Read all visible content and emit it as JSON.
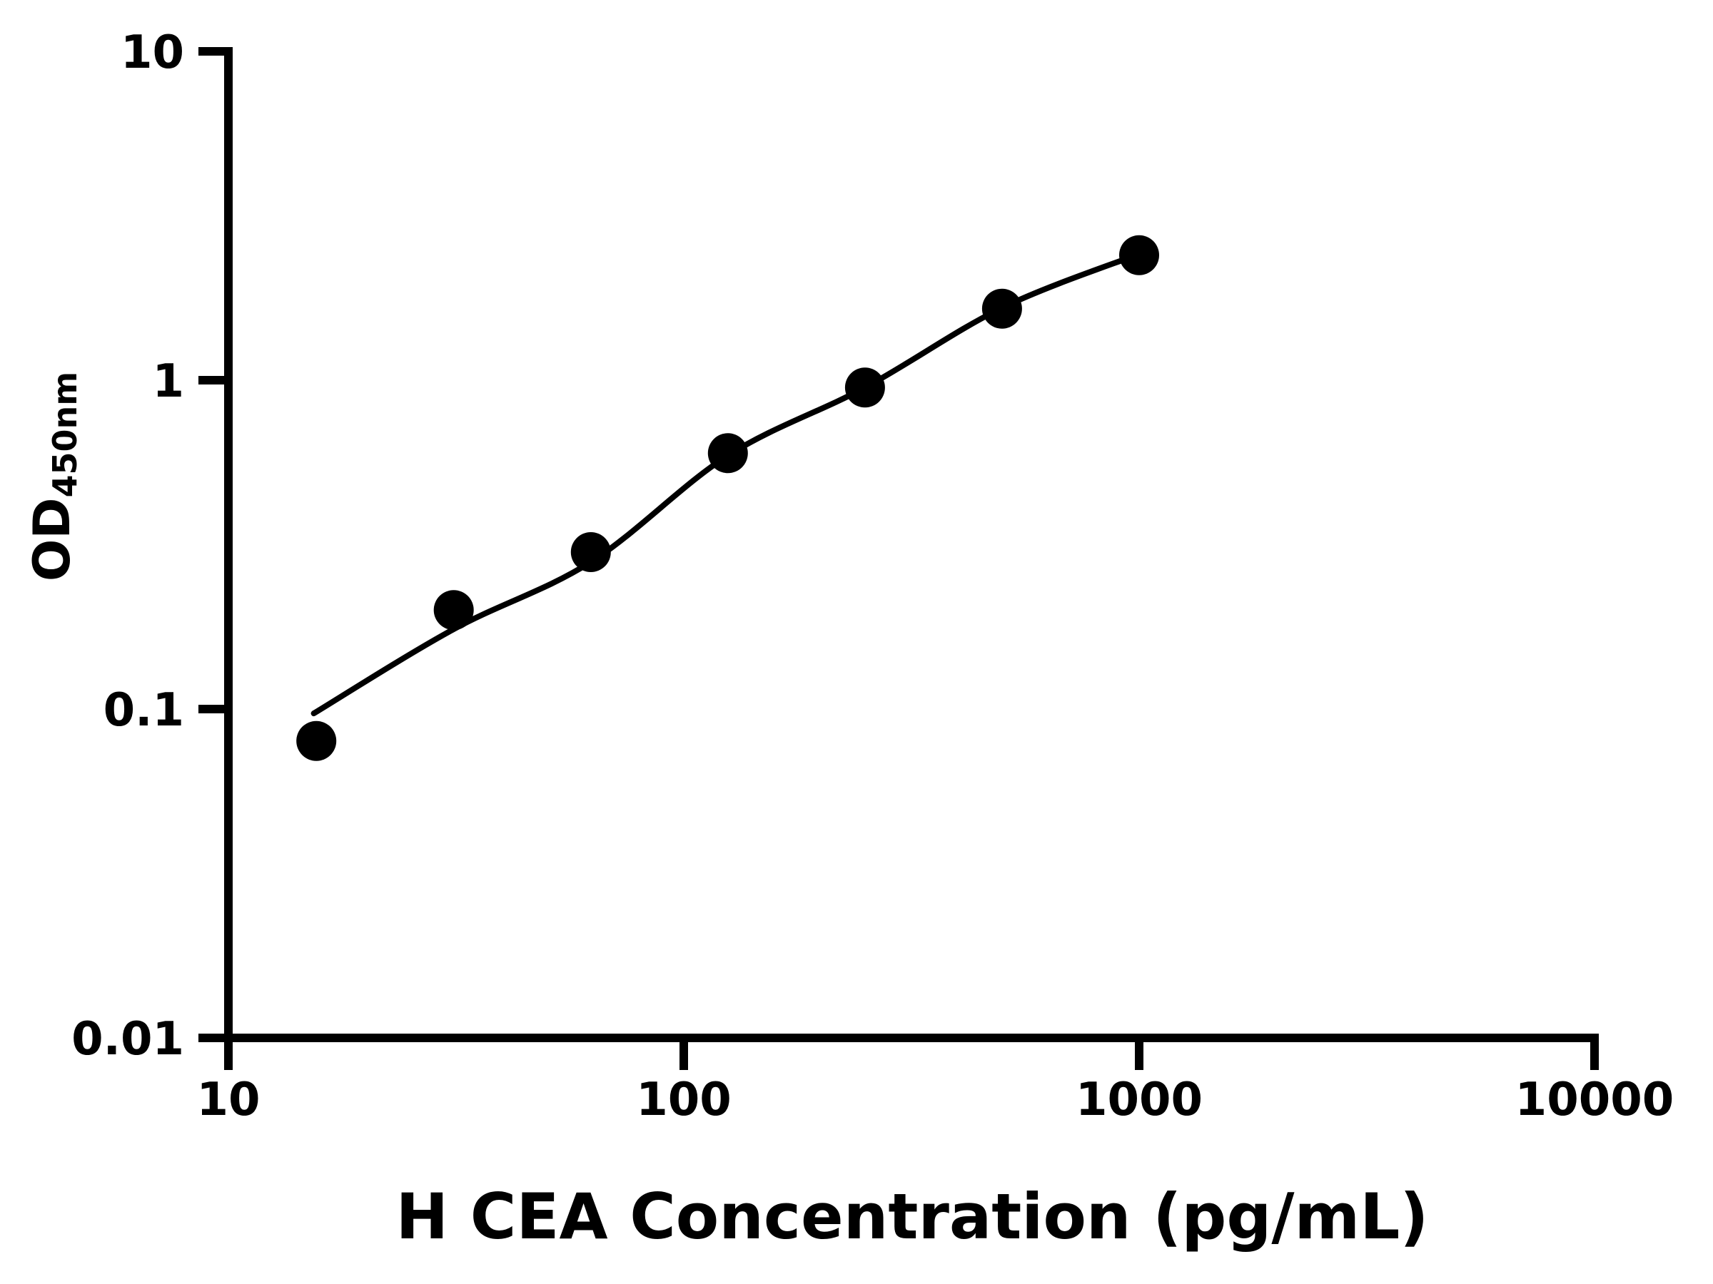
{
  "figure": {
    "background": "#ffffff",
    "foreground": "#000000"
  },
  "chart_data": {
    "type": "scatter",
    "title": "",
    "xlabel": "H CEA Concentration (pg/mL)",
    "ylabel": "OD450nm",
    "ylabel_main": "OD",
    "ylabel_sub": "450nm",
    "x_scale": "log",
    "y_scale": "log",
    "xlim": [
      10,
      10000
    ],
    "ylim": [
      0.01,
      10
    ],
    "grid": false,
    "legend": null,
    "x_ticks": [
      {
        "value": 10,
        "label": "10"
      },
      {
        "value": 100,
        "label": "100"
      },
      {
        "value": 1000,
        "label": "1000"
      },
      {
        "value": 10000,
        "label": "10000"
      }
    ],
    "y_ticks": [
      {
        "value": 10,
        "label": "10"
      },
      {
        "value": 1,
        "label": "1"
      },
      {
        "value": 0.1,
        "label": "0.1"
      },
      {
        "value": 0.01,
        "label": "0.01"
      }
    ],
    "series": [
      {
        "name": "standard-points",
        "type": "scatter",
        "marker": "circle",
        "color": "#000000",
        "points": [
          [
            15.6,
            0.08
          ],
          [
            31.25,
            0.2
          ],
          [
            62.5,
            0.3
          ],
          [
            125,
            0.6
          ],
          [
            250,
            0.95
          ],
          [
            500,
            1.65
          ],
          [
            1000,
            2.4
          ]
        ]
      },
      {
        "name": "fit-curve",
        "type": "line",
        "color": "#000000",
        "points": [
          [
            15.4,
            0.097
          ],
          [
            31.25,
            0.175
          ],
          [
            62.5,
            0.28
          ],
          [
            125,
            0.59
          ],
          [
            250,
            0.95
          ],
          [
            500,
            1.66
          ],
          [
            1000,
            2.42
          ]
        ]
      }
    ]
  }
}
